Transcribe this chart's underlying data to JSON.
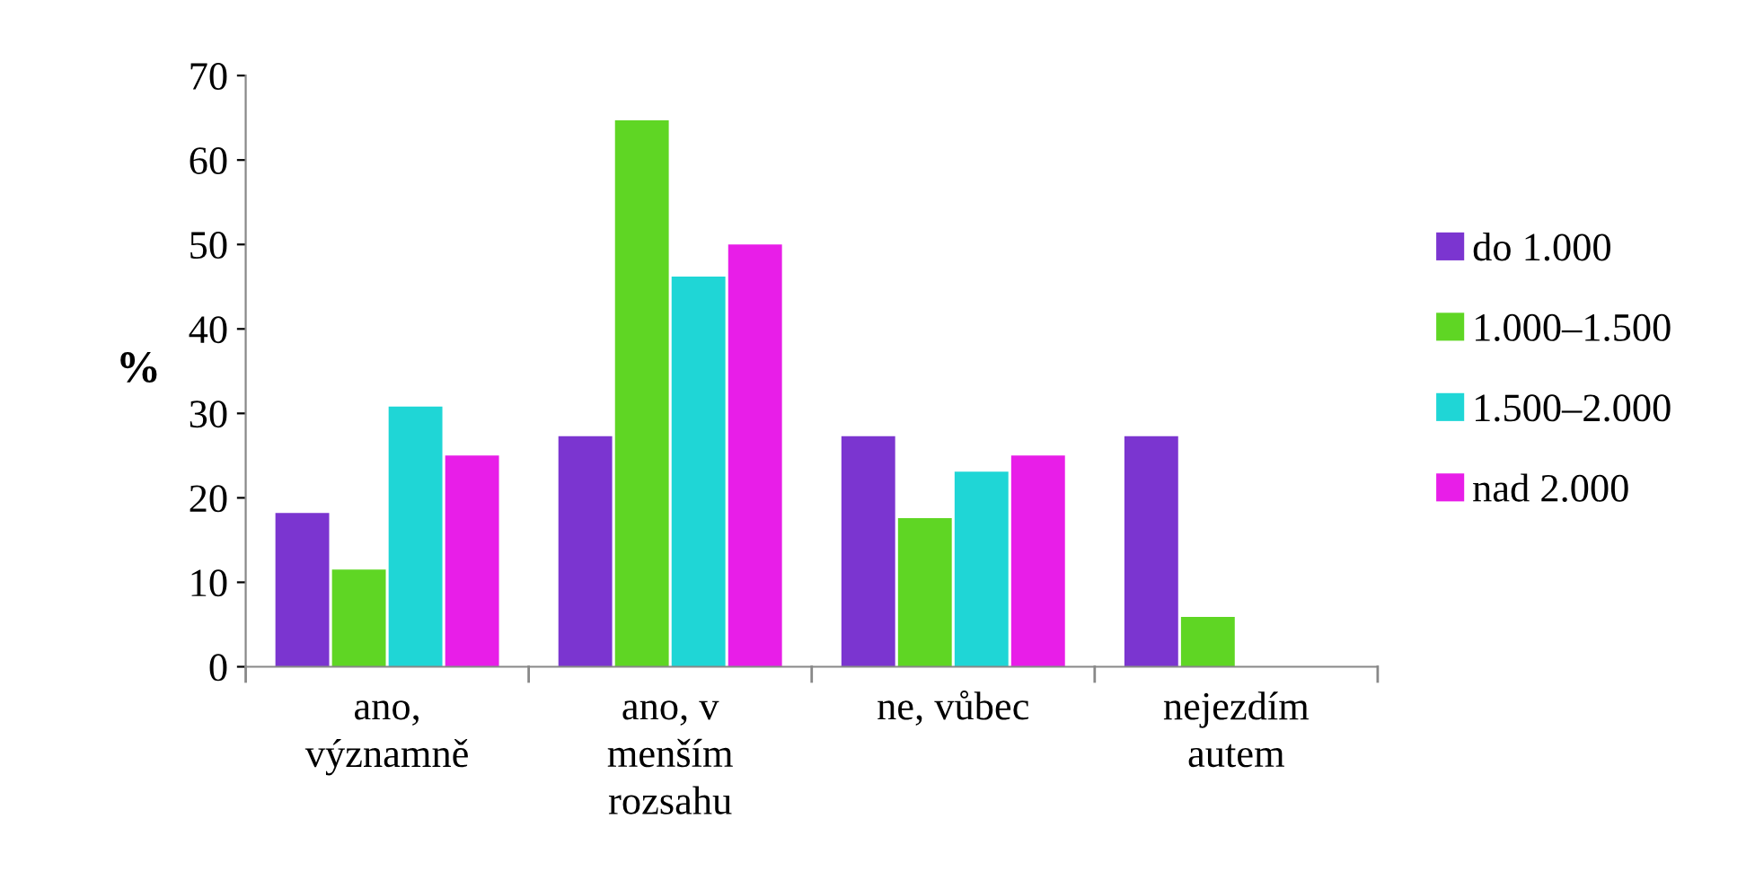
{
  "chart_data": {
    "type": "bar",
    "ylabel": "%",
    "categories": [
      "ano,\nvýznamně",
      "ano, v\nmenším\nrozsahu",
      "ne, vůbec",
      "nejezdím\nautem"
    ],
    "series": [
      {
        "name": "do 1.000",
        "color": "#7b35d0",
        "values": [
          18.2,
          27.3,
          27.3,
          27.3
        ]
      },
      {
        "name": "1.000–1.500",
        "color": "#5fd624",
        "values": [
          11.5,
          64.7,
          17.6,
          5.9
        ]
      },
      {
        "name": "1.500–2.000",
        "color": "#1fd6d6",
        "values": [
          30.8,
          46.2,
          23.1,
          0
        ]
      },
      {
        "name": "nad 2.000",
        "color": "#e81ee8",
        "values": [
          25,
          50,
          25,
          0
        ]
      }
    ],
    "ylim": [
      0,
      70
    ],
    "yticks": [
      0,
      10,
      20,
      30,
      40,
      50,
      60,
      70
    ],
    "grid": false,
    "legend": "right"
  }
}
